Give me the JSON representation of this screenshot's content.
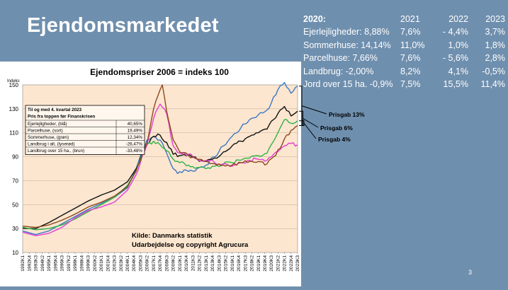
{
  "slide": {
    "title": "Ejendomsmarkedet",
    "page_number": "3"
  },
  "stats": {
    "header": [
      "2020:",
      "2021",
      "2022",
      "2023"
    ],
    "rows": [
      [
        "Ejerlejligheder: 8,88%",
        "7,6%",
        "- 4,4%",
        "3,7%"
      ],
      [
        "Sommerhuse: 14,14%",
        "11,0%",
        "1,0%",
        "1,8%"
      ],
      [
        "Parcelhuse: 7,66%",
        "7,6%",
        "- 5,6%",
        "2,8%"
      ],
      [
        "Landbrug: -2,00%",
        "8,2%",
        "4,1%",
        "-0,5%"
      ],
      [
        "Jord over 15 ha. -0,9%",
        "7,5%",
        "15,5%",
        "11,4%"
      ]
    ]
  },
  "chart_data": {
    "type": "line",
    "title": "Ejendomspriser 2006 = indeks 100",
    "ylabel": "Indeks",
    "ylim": [
      10,
      150
    ],
    "yticks": [
      10,
      30,
      50,
      70,
      90,
      110,
      130,
      150
    ],
    "xticks": [
      "1992K1",
      "1992K4",
      "1993K3",
      "1994K2",
      "1995K1",
      "1995K4",
      "1996K3",
      "1997K2",
      "1998K1",
      "1998K4",
      "1999K3",
      "2000K2",
      "2001K1",
      "2001K4",
      "2002K3",
      "2003K2",
      "2004K1",
      "2004K4",
      "2005K3",
      "2006K2",
      "2007K1",
      "2007K4",
      "2008K3",
      "2009K2",
      "2010K1",
      "2010K4",
      "2011K3",
      "2012K2",
      "2013K1",
      "2013K4",
      "2014K3",
      "2015K2",
      "2016K1",
      "2016K4",
      "2017K3",
      "2018K2",
      "2019K1",
      "2019K4",
      "2020K3",
      "2021K2",
      "2022K1",
      "2022K4",
      "2023K3"
    ],
    "grid": true,
    "colors": {
      "Ejerlejligheder": "#3b78c4",
      "Parcelhuse": "#111111",
      "Sommerhuse": "#2fb34a",
      "Landbrug": "#e23dd6",
      "Jord": "#8a4a1e"
    },
    "series": [
      {
        "key": "Ejerlejligheder",
        "points": [
          [
            "1992K1",
            28
          ],
          [
            "1993K3",
            25
          ],
          [
            "1995K1",
            28
          ],
          [
            "1996K3",
            34
          ],
          [
            "1998K1",
            40
          ],
          [
            "1999K3",
            46
          ],
          [
            "2001K1",
            51
          ],
          [
            "2002K3",
            56
          ],
          [
            "2004K1",
            64
          ],
          [
            "2005K1",
            80
          ],
          [
            "2005K4",
            96
          ],
          [
            "2006K2",
            104
          ],
          [
            "2007K1",
            107
          ],
          [
            "2007K4",
            104
          ],
          [
            "2008K3",
            93
          ],
          [
            "2009K2",
            80
          ],
          [
            "2009K4",
            76
          ],
          [
            "2010K3",
            79
          ],
          [
            "2011K3",
            78
          ],
          [
            "2012K2",
            81
          ],
          [
            "2013K1",
            83
          ],
          [
            "2014K1",
            90
          ],
          [
            "2015K1",
            99
          ],
          [
            "2016K1",
            107
          ],
          [
            "2017K1",
            114
          ],
          [
            "2018K1",
            121
          ],
          [
            "2019K1",
            125
          ],
          [
            "2020K1",
            129
          ],
          [
            "2020K3",
            135
          ],
          [
            "2021K2",
            146
          ],
          [
            "2022K1",
            152
          ],
          [
            "2022K4",
            143
          ],
          [
            "2023K3",
            149
          ]
        ]
      },
      {
        "key": "Parcelhuse",
        "points": [
          [
            "1992K1",
            30
          ],
          [
            "1993K3",
            30
          ],
          [
            "1995K1",
            35
          ],
          [
            "1996K3",
            41
          ],
          [
            "1998K1",
            47
          ],
          [
            "1999K3",
            53
          ],
          [
            "2001K1",
            58
          ],
          [
            "2002K3",
            62
          ],
          [
            "2004K1",
            69
          ],
          [
            "2005K1",
            80
          ],
          [
            "2005K4",
            94
          ],
          [
            "2006K2",
            101
          ],
          [
            "2007K1",
            107
          ],
          [
            "2007K4",
            108
          ],
          [
            "2008K3",
            102
          ],
          [
            "2009K2",
            92
          ],
          [
            "2010K1",
            91
          ],
          [
            "2011K1",
            92
          ],
          [
            "2012K1",
            88
          ],
          [
            "2013K1",
            86
          ],
          [
            "2014K1",
            89
          ],
          [
            "2015K1",
            94
          ],
          [
            "2016K1",
            99
          ],
          [
            "2017K1",
            103
          ],
          [
            "2018K1",
            107
          ],
          [
            "2019K1",
            110
          ],
          [
            "2020K1",
            113
          ],
          [
            "2020K4",
            121
          ],
          [
            "2021K3",
            129
          ],
          [
            "2022K1",
            132
          ],
          [
            "2022K4",
            124
          ],
          [
            "2023K3",
            128
          ]
        ]
      },
      {
        "key": "Sommerhuse",
        "points": [
          [
            "1992K1",
            31
          ],
          [
            "1993K3",
            29
          ],
          [
            "1995K1",
            30
          ],
          [
            "1996K3",
            33
          ],
          [
            "1998K1",
            38
          ],
          [
            "1999K3",
            44
          ],
          [
            "2001K1",
            50
          ],
          [
            "2002K3",
            56
          ],
          [
            "2004K1",
            66
          ],
          [
            "2005K1",
            78
          ],
          [
            "2005K4",
            94
          ],
          [
            "2006K2",
            100
          ],
          [
            "2007K1",
            103
          ],
          [
            "2007K4",
            100
          ],
          [
            "2008K3",
            95
          ],
          [
            "2009K2",
            88
          ],
          [
            "2010K1",
            85
          ],
          [
            "2011K1",
            83
          ],
          [
            "2012K1",
            81
          ],
          [
            "2013K1",
            80
          ],
          [
            "2014K1",
            82
          ],
          [
            "2015K1",
            84
          ],
          [
            "2016K1",
            85
          ],
          [
            "2017K1",
            87
          ],
          [
            "2018K1",
            89
          ],
          [
            "2019K1",
            91
          ],
          [
            "2020K1",
            93
          ],
          [
            "2020K4",
            103
          ],
          [
            "2021K3",
            114
          ],
          [
            "2022K1",
            121
          ],
          [
            "2022K4",
            118
          ],
          [
            "2023K3",
            120
          ]
        ]
      },
      {
        "key": "Landbrug",
        "points": [
          [
            "1992K1",
            27
          ],
          [
            "1993K3",
            24
          ],
          [
            "1995K1",
            26
          ],
          [
            "1996K3",
            31
          ],
          [
            "1998K1",
            39
          ],
          [
            "1999K3",
            45
          ],
          [
            "2001K1",
            48
          ],
          [
            "2002K3",
            52
          ],
          [
            "2004K1",
            62
          ],
          [
            "2005K1",
            75
          ],
          [
            "2005K4",
            92
          ],
          [
            "2006K2",
            100
          ],
          [
            "2007K1",
            122
          ],
          [
            "2007K4",
            134
          ],
          [
            "2008K3",
            126
          ],
          [
            "2009K2",
            99
          ],
          [
            "2010K1",
            93
          ],
          [
            "2011K1",
            92
          ],
          [
            "2012K1",
            88
          ],
          [
            "2013K1",
            87
          ],
          [
            "2014K1",
            85
          ],
          [
            "2015K1",
            84
          ],
          [
            "2016K1",
            82
          ],
          [
            "2017K1",
            85
          ],
          [
            "2018K1",
            87
          ],
          [
            "2019K1",
            88
          ],
          [
            "2020K1",
            87
          ],
          [
            "2020K4",
            92
          ],
          [
            "2021K3",
            96
          ],
          [
            "2022K1",
            99
          ],
          [
            "2022K4",
            101
          ],
          [
            "2023K3",
            100
          ]
        ]
      },
      {
        "key": "Jord",
        "points": [
          [
            "1992K1",
            32
          ],
          [
            "1993K3",
            31
          ],
          [
            "1995K1",
            33
          ],
          [
            "1996K3",
            37
          ],
          [
            "1998K1",
            42
          ],
          [
            "1999K3",
            48
          ],
          [
            "2001K1",
            52
          ],
          [
            "2002K3",
            57
          ],
          [
            "2004K1",
            65
          ],
          [
            "2005K1",
            78
          ],
          [
            "2005K4",
            93
          ],
          [
            "2006K2",
            101
          ],
          [
            "2007K1",
            130
          ],
          [
            "2007K4",
            146
          ],
          [
            "2008K1",
            150
          ],
          [
            "2008K3",
            128
          ],
          [
            "2009K2",
            104
          ],
          [
            "2010K1",
            94
          ],
          [
            "2011K1",
            91
          ],
          [
            "2012K1",
            88
          ],
          [
            "2013K1",
            86
          ],
          [
            "2014K1",
            84
          ],
          [
            "2015K1",
            83
          ],
          [
            "2016K1",
            83
          ],
          [
            "2017K1",
            85
          ],
          [
            "2018K1",
            86
          ],
          [
            "2019K1",
            86
          ],
          [
            "2020K1",
            84
          ],
          [
            "2020K4",
            90
          ],
          [
            "2021K3",
            97
          ],
          [
            "2022K1",
            105
          ],
          [
            "2022K4",
            112
          ],
          [
            "2023K3",
            116
          ]
        ]
      }
    ],
    "legend_box": {
      "heading1": "Til og med 4. kvartal 2023",
      "heading2": "Pris fra toppen før Finanskrisen",
      "rows": [
        [
          "Ejerlejligheder, (blå)",
          "40,65%"
        ],
        [
          "Parcelhuse, (sort)",
          "19,49%"
        ],
        [
          "Sommerhuse, (grøn)",
          "12,34%"
        ],
        [
          "Landbrug i alt, (lyserød)",
          "-26,47%"
        ],
        [
          "Landbrug over 15 ha., (brun)",
          "-33,48%"
        ]
      ]
    },
    "source_lines": [
      "Kilde: Danmarks statistik",
      "Udarbejdelse og copyright Agrucura"
    ],
    "annotations": [
      "Prisgab 13%",
      "Prisgab 6%",
      "Prisgab 4%"
    ]
  }
}
